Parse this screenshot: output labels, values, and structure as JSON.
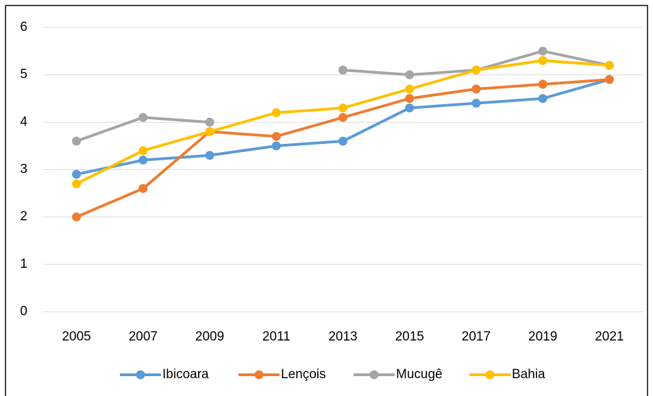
{
  "chart_data": {
    "type": "line",
    "categories": [
      "2005",
      "2007",
      "2009",
      "2011",
      "2013",
      "2015",
      "2017",
      "2019",
      "2021"
    ],
    "series": [
      {
        "name": "Ibicoara",
        "color": "#5b9bd5",
        "values": [
          2.9,
          3.2,
          3.3,
          3.5,
          3.6,
          4.3,
          4.4,
          4.5,
          4.9
        ]
      },
      {
        "name": "Lençois",
        "color": "#ed7d31",
        "values": [
          2.0,
          2.6,
          3.8,
          3.7,
          4.1,
          4.5,
          4.7,
          4.8,
          4.9
        ]
      },
      {
        "name": "Mucugê",
        "color": "#a5a5a5",
        "values": [
          3.6,
          4.1,
          4.0,
          null,
          5.1,
          5.0,
          5.1,
          5.5,
          5.2
        ]
      },
      {
        "name": "Bahia",
        "color": "#ffc000",
        "values": [
          2.7,
          3.4,
          3.8,
          4.2,
          4.3,
          4.7,
          5.1,
          5.3,
          5.2
        ]
      }
    ],
    "ylim": [
      0,
      6
    ],
    "yticks": [
      0,
      1,
      2,
      3,
      4,
      5,
      6
    ],
    "grid": true,
    "legend": "bottom"
  }
}
